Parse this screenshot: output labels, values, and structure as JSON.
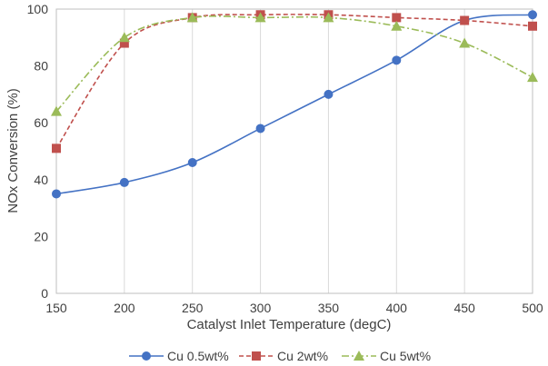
{
  "chart_data": {
    "type": "line",
    "xlabel": "Catalyst Inlet Temperature (degC)",
    "ylabel": "NOx Conversion (%)",
    "xlim": [
      150,
      500
    ],
    "ylim": [
      0,
      100
    ],
    "xticks": [
      150,
      200,
      250,
      300,
      350,
      400,
      450,
      500
    ],
    "yticks": [
      0,
      20,
      40,
      60,
      80,
      100
    ],
    "grid": "vertical",
    "legend": "bottom",
    "series": [
      {
        "name": "Cu 0.5wt%",
        "color": "#4472c4",
        "marker": "circle",
        "line": "solid",
        "x": [
          150,
          200,
          250,
          300,
          350,
          400,
          450,
          500
        ],
        "y": [
          35,
          39,
          46,
          58,
          70,
          82,
          96,
          98
        ]
      },
      {
        "name": "Cu 2wt%",
        "color": "#c0504d",
        "marker": "square",
        "line": "dashed",
        "x": [
          150,
          200,
          250,
          300,
          350,
          400,
          450,
          500
        ],
        "y": [
          51,
          88,
          97,
          98,
          98,
          97,
          96,
          94
        ]
      },
      {
        "name": "Cu 5wt%",
        "color": "#9bbb59",
        "marker": "triangle",
        "line": "dashdot",
        "x": [
          150,
          200,
          250,
          300,
          350,
          400,
          450,
          500
        ],
        "y": [
          64,
          90,
          97,
          97,
          97,
          94,
          88,
          76
        ]
      }
    ]
  }
}
